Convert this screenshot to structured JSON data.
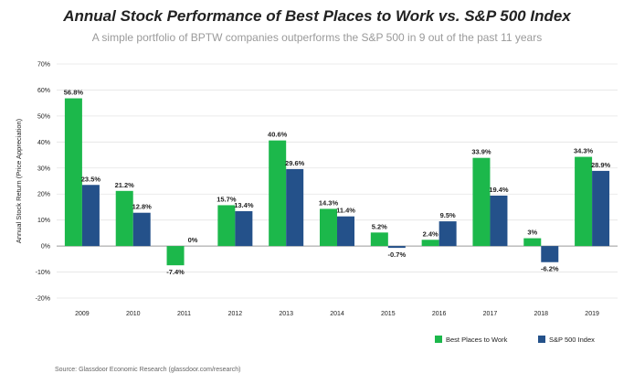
{
  "header": {
    "title": "Annual Stock Performance of Best Places to Work vs. S&P 500 Index",
    "subtitle": "A simple portfolio of BPTW companies outperforms the S&P 500 in 9 out of the past 11 years"
  },
  "footer": {
    "source": "Source: Glassdoor Economic Research (glassdoor.com/research)"
  },
  "chart_data": {
    "type": "bar",
    "title": "Annual Stock Performance of Best Places to Work vs. S&P 500 Index",
    "subtitle": "A simple portfolio of BPTW companies outperforms the S&P 500 in 9 out of the past 11 years",
    "xlabel": "",
    "ylabel": "Annual Stock Return (Price Appreciation)",
    "ylim": [
      -20,
      70
    ],
    "yticks": [
      -20,
      -10,
      0,
      10,
      20,
      30,
      40,
      50,
      60,
      70
    ],
    "ytick_labels": [
      "-20%",
      "-10%",
      "0%",
      "10%",
      "20%",
      "30%",
      "40%",
      "50%",
      "60%",
      "70%"
    ],
    "grid": true,
    "legend_position": "bottom-right",
    "categories": [
      "2009",
      "2010",
      "2011",
      "2012",
      "2013",
      "2014",
      "2015",
      "2016",
      "2017",
      "2018",
      "2019"
    ],
    "series": [
      {
        "name": "Best Places to Work",
        "color": "#1cb84b",
        "values": [
          56.8,
          21.2,
          -7.4,
          15.7,
          40.6,
          14.3,
          5.2,
          2.4,
          33.9,
          3,
          34.3
        ],
        "labels": [
          "56.8%",
          "21.2%",
          "-7.4%",
          "15.7%",
          "40.6%",
          "14.3%",
          "5.2%",
          "2.4%",
          "33.9%",
          "3%",
          "34.3%"
        ]
      },
      {
        "name": "S&P 500 Index",
        "color": "#24518a",
        "values": [
          23.5,
          12.8,
          0,
          13.4,
          29.6,
          11.4,
          -0.7,
          9.5,
          19.4,
          -6.2,
          28.9
        ],
        "labels": [
          "23.5%",
          "12.8%",
          "0%",
          "13.4%",
          "29.6%",
          "11.4%",
          "-0.7%",
          "9.5%",
          "19.4%",
          "-6.2%",
          "28.9%"
        ]
      }
    ]
  }
}
